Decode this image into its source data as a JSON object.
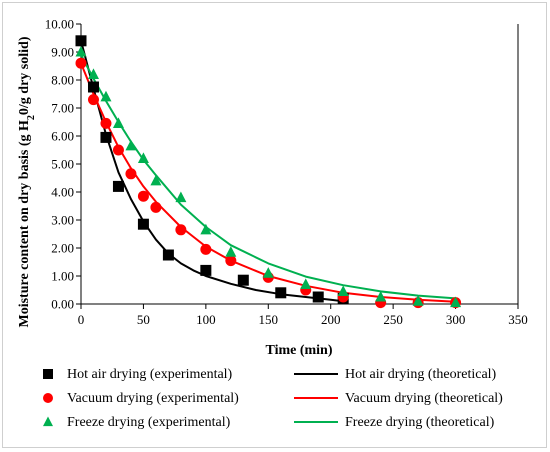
{
  "chart_data": {
    "type": "scatter",
    "title": "",
    "xlabel": "Time (min)",
    "ylabel": "Moisture content on dry basis (g H2O/g  dry solid)",
    "ylabel_parts": {
      "pre": "Moisture content on dry basis (g H",
      "sub": "2",
      "post": "0/g  dry solid)"
    },
    "xlim": [
      0,
      350
    ],
    "ylim": [
      0,
      10
    ],
    "x_ticks": [
      "0",
      "50",
      "100",
      "150",
      "200",
      "250",
      "300",
      "350"
    ],
    "y_ticks": [
      "0.00",
      "1.00",
      "2.00",
      "3.00",
      "4.00",
      "5.00",
      "6.00",
      "7.00",
      "8.00",
      "9.00",
      "10.00"
    ],
    "grid": false,
    "legend_position": "bottom",
    "series": [
      {
        "name": "Hot air drying (experimental)",
        "kind": "marker",
        "marker": "square",
        "color": "#000000",
        "x": [
          0,
          10,
          20,
          30,
          50,
          70,
          100,
          130,
          160,
          190,
          210
        ],
        "y": [
          9.4,
          7.75,
          5.95,
          4.2,
          2.85,
          1.75,
          1.2,
          0.85,
          0.4,
          0.25,
          0.2
        ]
      },
      {
        "name": "Hot air drying (theoretical)",
        "kind": "line",
        "color": "#000000",
        "x": [
          0,
          10,
          20,
          30,
          40,
          50,
          60,
          70,
          80,
          90,
          100,
          120,
          140,
          160,
          180,
          200,
          210
        ],
        "y": [
          9.4,
          7.7,
          6.05,
          4.7,
          3.75,
          2.95,
          2.3,
          1.8,
          1.45,
          1.2,
          1.0,
          0.72,
          0.5,
          0.35,
          0.25,
          0.15,
          0.1
        ]
      },
      {
        "name": "Vacuum drying (experimental)",
        "kind": "marker",
        "marker": "circle",
        "color": "#ff0000",
        "x": [
          0,
          10,
          20,
          30,
          40,
          50,
          60,
          80,
          100,
          120,
          150,
          180,
          210,
          240,
          270,
          300
        ],
        "y": [
          8.6,
          7.3,
          6.45,
          5.5,
          4.65,
          3.85,
          3.45,
          2.65,
          1.95,
          1.55,
          0.95,
          0.5,
          0.25,
          0.05,
          0.05,
          0.05
        ]
      },
      {
        "name": "Vacuum drying (theoretical)",
        "kind": "line",
        "color": "#ff0000",
        "x": [
          0,
          10,
          20,
          30,
          40,
          50,
          60,
          80,
          100,
          120,
          150,
          180,
          210,
          240,
          270,
          300
        ],
        "y": [
          8.6,
          7.5,
          6.5,
          5.6,
          4.85,
          4.2,
          3.65,
          2.75,
          2.05,
          1.55,
          1.0,
          0.65,
          0.4,
          0.25,
          0.15,
          0.08
        ]
      },
      {
        "name": "Freeze drying (experimental)",
        "kind": "marker",
        "marker": "triangle",
        "color": "#00b050",
        "x": [
          0,
          10,
          20,
          30,
          40,
          50,
          60,
          80,
          100,
          120,
          150,
          180,
          210,
          240,
          270,
          300
        ],
        "y": [
          9.0,
          8.2,
          7.4,
          6.45,
          5.65,
          5.2,
          4.4,
          3.8,
          2.65,
          1.85,
          1.1,
          0.7,
          0.45,
          0.25,
          0.1,
          0.05
        ]
      },
      {
        "name": "Freeze drying (theoretical)",
        "kind": "line",
        "color": "#00b050",
        "x": [
          0,
          10,
          20,
          30,
          40,
          50,
          60,
          80,
          100,
          120,
          150,
          180,
          210,
          240,
          270,
          300
        ],
        "y": [
          8.9,
          8.05,
          7.25,
          6.5,
          5.8,
          5.15,
          4.6,
          3.55,
          2.75,
          2.1,
          1.45,
          0.98,
          0.67,
          0.45,
          0.3,
          0.2
        ]
      }
    ]
  }
}
